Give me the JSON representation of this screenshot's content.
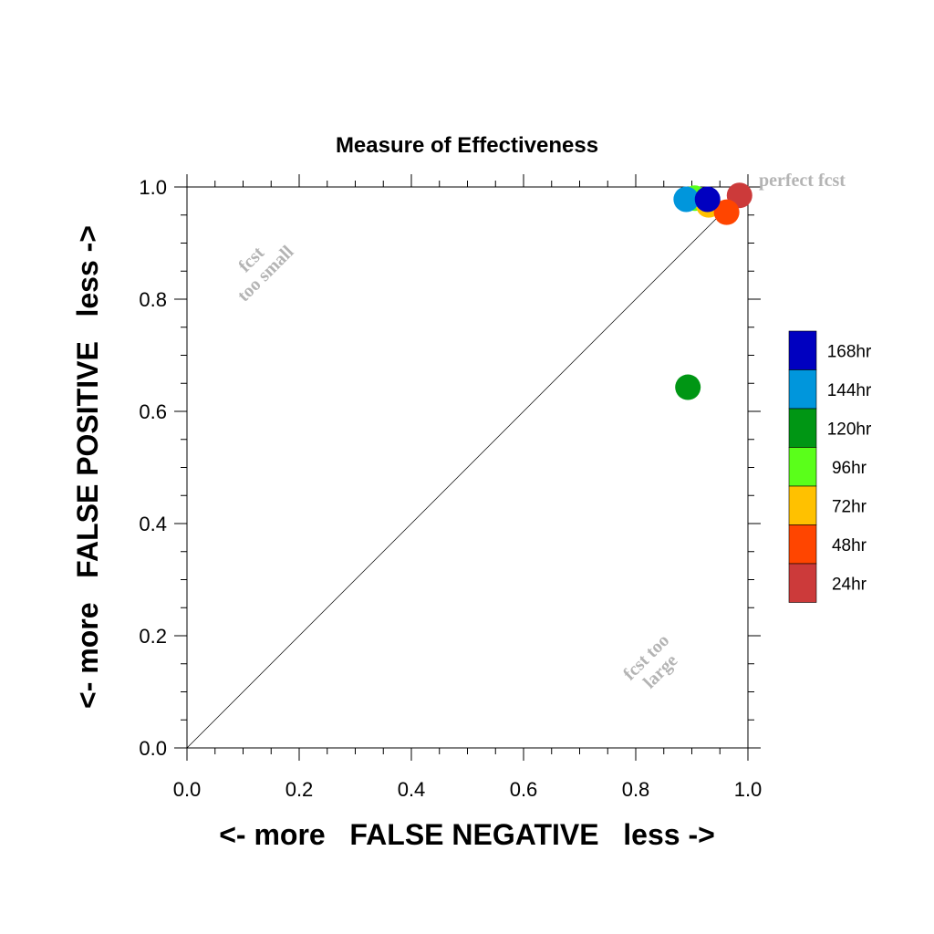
{
  "chart_data": {
    "type": "scatter",
    "title": "Measure of Effectiveness",
    "xlabel": "<- more   FALSE NEGATIVE   less ->",
    "ylabel": "<- more   FALSE POSITIVE   less ->",
    "xlim": [
      0.0,
      1.0
    ],
    "ylim": [
      0.0,
      1.0
    ],
    "xticks": [
      "0.0",
      "0.2",
      "0.4",
      "0.6",
      "0.8",
      "1.0"
    ],
    "yticks": [
      "0.0",
      "0.2",
      "0.4",
      "0.6",
      "0.8",
      "1.0"
    ],
    "grid": false,
    "diagonal_line": true,
    "annotations": {
      "perfect": "perfect fcst",
      "too_small_1": "fcst",
      "too_small_2": "too small",
      "too_large_1": "fcst too",
      "too_large_2": "large"
    },
    "legend_position": "right",
    "series": [
      {
        "name": "24hr",
        "color": "#cc3a3a",
        "x": [
          0.985
        ],
        "y": [
          0.985
        ]
      },
      {
        "name": "96hr",
        "color": "#5aff1a",
        "x": [
          0.905
        ],
        "y": [
          0.98
        ]
      },
      {
        "name": "72hr",
        "color": "#ffc100",
        "x": [
          0.93
        ],
        "y": [
          0.968
        ]
      },
      {
        "name": "48hr",
        "color": "#ff4500",
        "x": [
          0.962
        ],
        "y": [
          0.955
        ]
      },
      {
        "name": "120hr",
        "color": "#009614",
        "x": [
          0.893
        ],
        "y": [
          0.643
        ]
      },
      {
        "name": "144hr",
        "color": "#0096dc",
        "x": [
          0.89
        ],
        "y": [
          0.978
        ]
      },
      {
        "name": "168hr",
        "color": "#0000c0",
        "x": [
          0.928
        ],
        "y": [
          0.978
        ]
      }
    ],
    "legend": [
      {
        "name": "168hr",
        "color": "#0000c0"
      },
      {
        "name": "144hr",
        "color": "#0096dc"
      },
      {
        "name": "120hr",
        "color": "#009614"
      },
      {
        "name": "96hr",
        "color": "#5aff1a"
      },
      {
        "name": "72hr",
        "color": "#ffc100"
      },
      {
        "name": "48hr",
        "color": "#ff4500"
      },
      {
        "name": "24hr",
        "color": "#cc3a3a"
      }
    ]
  }
}
